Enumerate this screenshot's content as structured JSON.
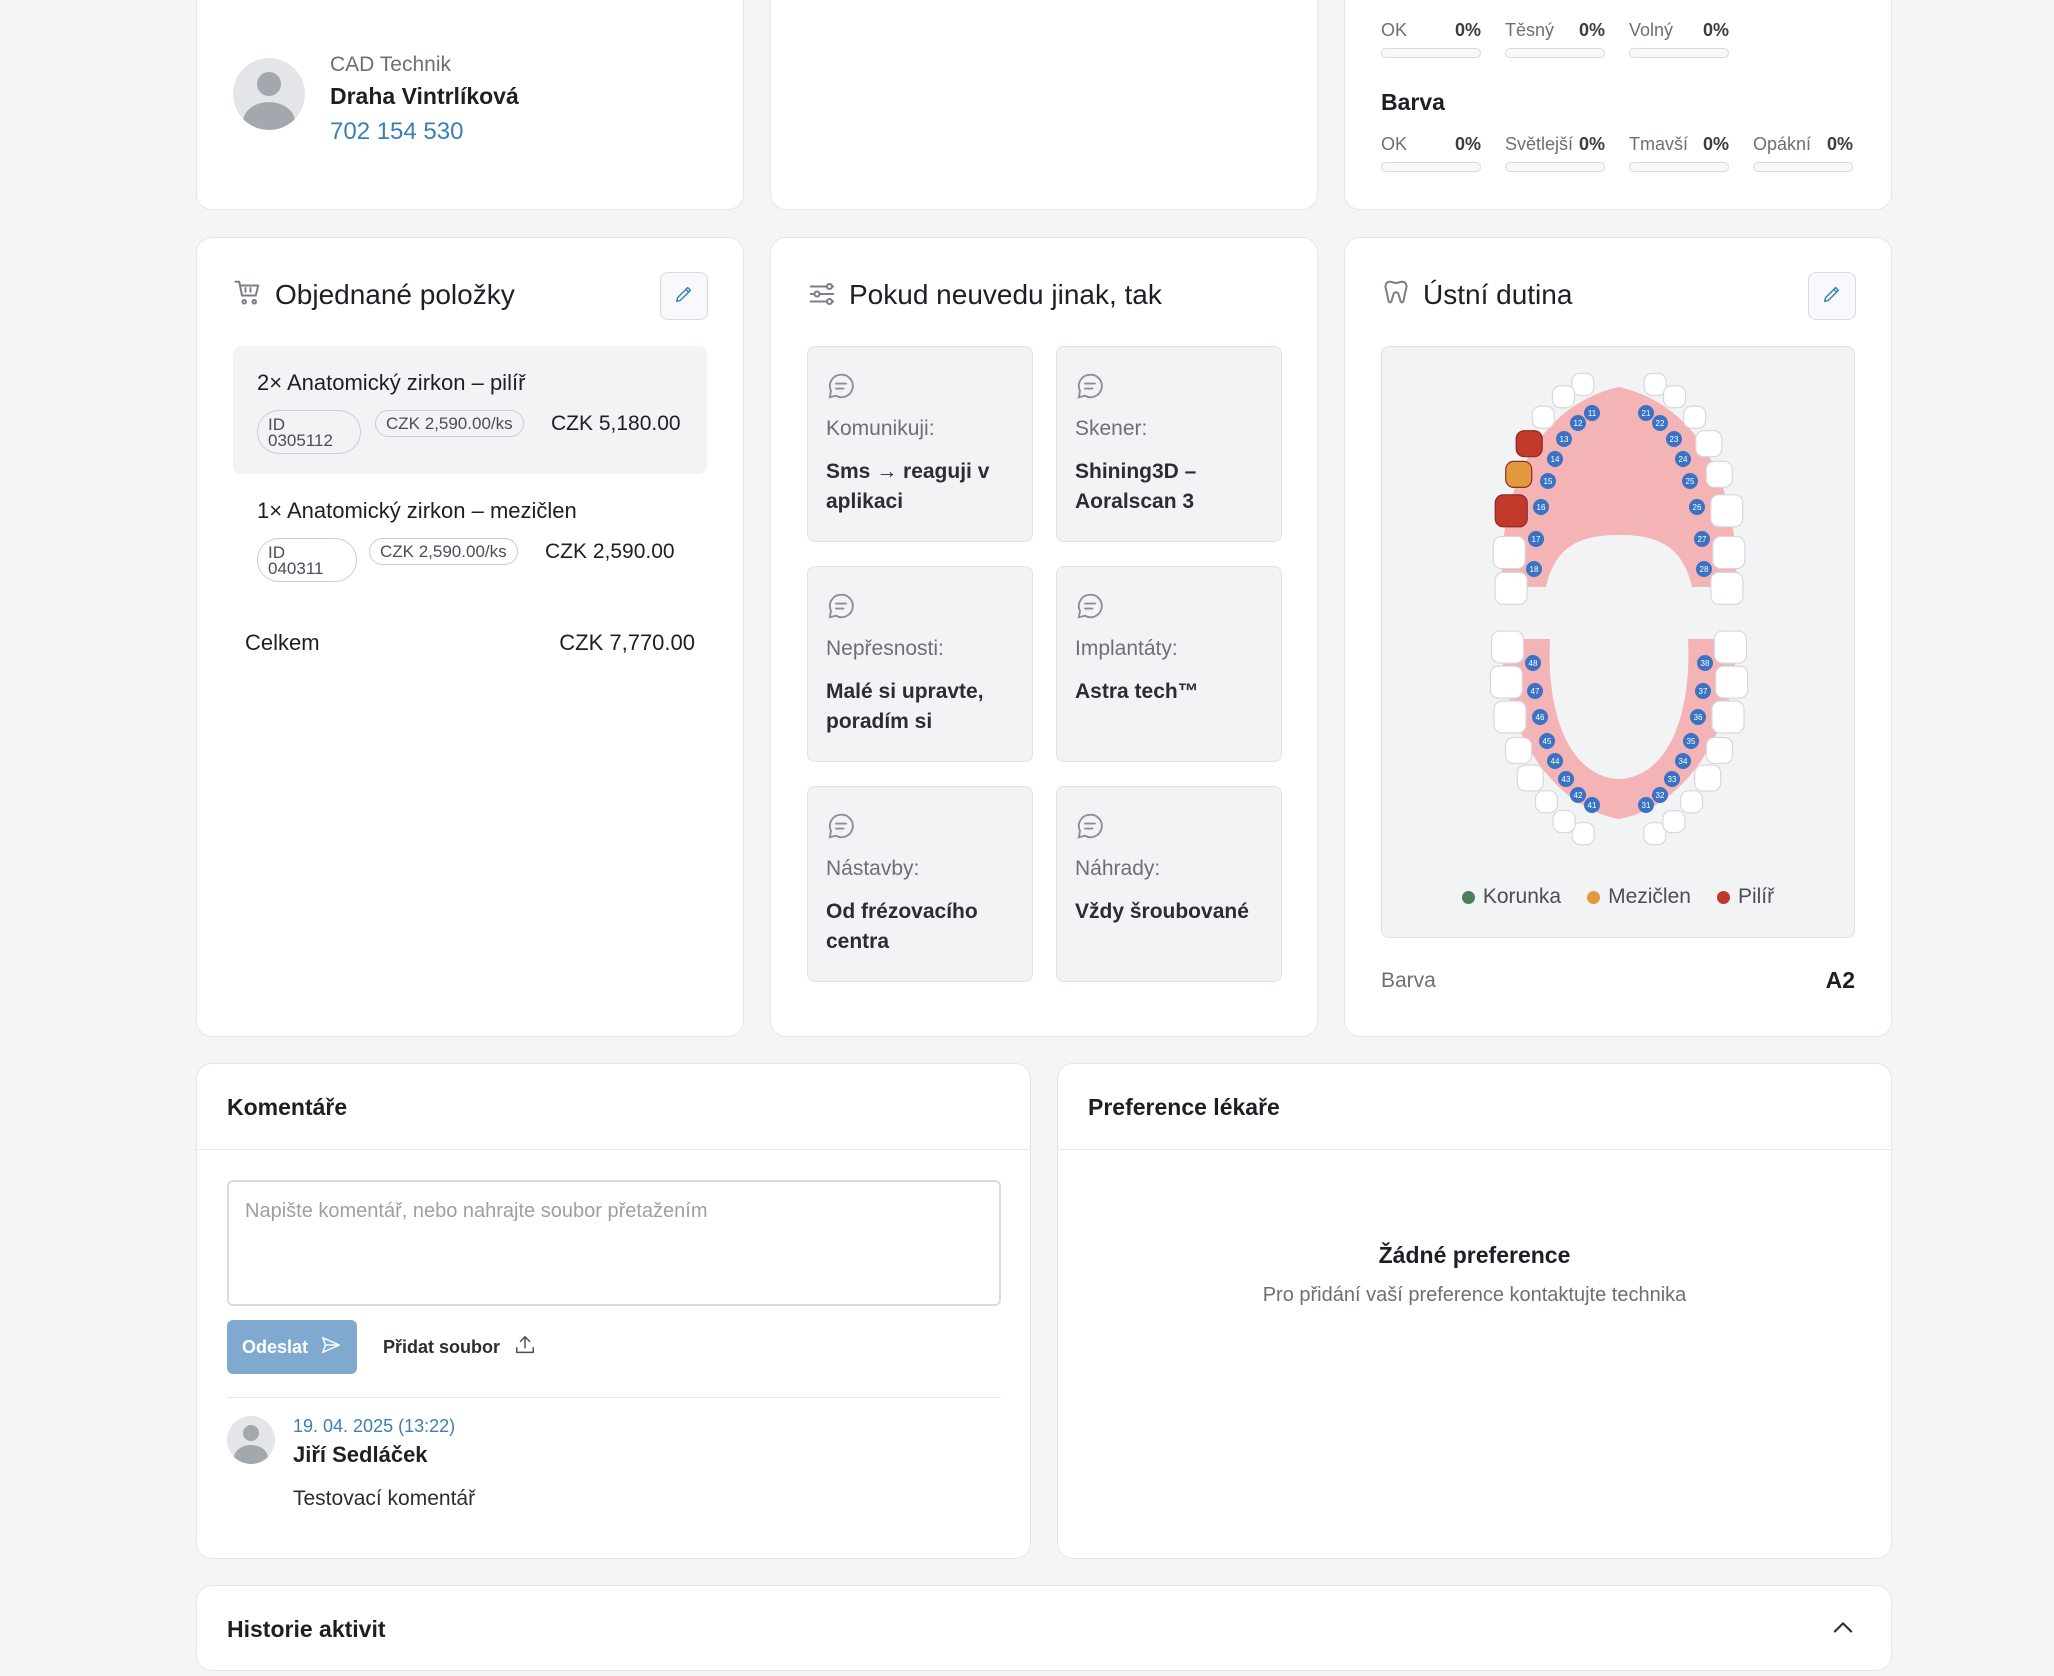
{
  "technician": {
    "role": "CAD Technik",
    "name": "Draha Vintrlíková",
    "phone": "702 154 530"
  },
  "fit_meters": {
    "items": [
      {
        "label": "OK",
        "value": "0%",
        "fraction": 0
      },
      {
        "label": "Těsný",
        "value": "0%",
        "fraction": 0
      },
      {
        "label": "Volný",
        "value": "0%",
        "fraction": 0
      }
    ]
  },
  "color_meters": {
    "title": "Barva",
    "items": [
      {
        "label": "OK",
        "value": "0%",
        "fraction": 0
      },
      {
        "label": "Světlejší",
        "value": "0%",
        "fraction": 0
      },
      {
        "label": "Tmavší",
        "value": "0%",
        "fraction": 0
      },
      {
        "label": "Opákní",
        "value": "0%",
        "fraction": 0
      }
    ]
  },
  "orders": {
    "title": "Objednané položky",
    "icon": "cart-icon",
    "items": [
      {
        "name": "2× Anatomický zirkon – pilíř",
        "id": "ID 0305112",
        "unit_price": "CZK 2,590.00/ks",
        "total": "CZK 5,180.00"
      },
      {
        "name": "1× Anatomický zirkon – mezičlen",
        "id": "ID 040311",
        "unit_price": "CZK 2,590.00/ks",
        "total": "CZK 2,590.00"
      }
    ],
    "total_label": "Celkem",
    "total_value": "CZK 7,770.00"
  },
  "defaults": {
    "title": "Pokud neuvedu jinak, tak",
    "icon": "sliders-icon",
    "tiles": [
      {
        "label": "Komunikuji:",
        "value": "Sms → reaguji v aplikaci"
      },
      {
        "label": "Skener:",
        "value": "Shining3D – Aoralscan 3"
      },
      {
        "label": "Nepřesnosti:",
        "value": "Malé si upravte, poradím si"
      },
      {
        "label": "Implantáty:",
        "value": "Astra tech™"
      },
      {
        "label": "Nástavby:",
        "value": "Od frézovacího centra"
      },
      {
        "label": "Náhrady:",
        "value": "Vždy šroubované"
      }
    ]
  },
  "oral": {
    "title": "Ústní dutina",
    "icon": "tooth-icon",
    "upper_numbers": [
      "11",
      "12",
      "13",
      "14",
      "15",
      "16",
      "17",
      "18",
      "21",
      "22",
      "23",
      "24",
      "25",
      "26",
      "27",
      "28"
    ],
    "lower_numbers": [
      "31",
      "32",
      "33",
      "34",
      "35",
      "36",
      "37",
      "38",
      "41",
      "42",
      "43",
      "44",
      "45",
      "46",
      "47",
      "48"
    ],
    "legend": [
      {
        "label": "Korunka",
        "color": "#4f7d5f"
      },
      {
        "label": "Mezičlen",
        "color": "#e39a3e"
      },
      {
        "label": "Pilíř",
        "color": "#c0392b"
      }
    ],
    "shade_label": "Barva",
    "shade_value": "A2"
  },
  "comments": {
    "title": "Komentáře",
    "placeholder": "Napište komentář, nebo nahrajte soubor přetažením",
    "send_label": "Odeslat",
    "attach_label": "Přidat soubor",
    "entries": [
      {
        "date": "19. 04. 2025 (13:22)",
        "author": "Jiří Sedláček",
        "text": "Testovací komentář"
      }
    ]
  },
  "preferences": {
    "title": "Preference lékaře",
    "empty_title": "Žádné preference",
    "empty_text": "Pro přidání vaší preference kontaktujte technika"
  },
  "history": {
    "title": "Historie aktivit"
  }
}
